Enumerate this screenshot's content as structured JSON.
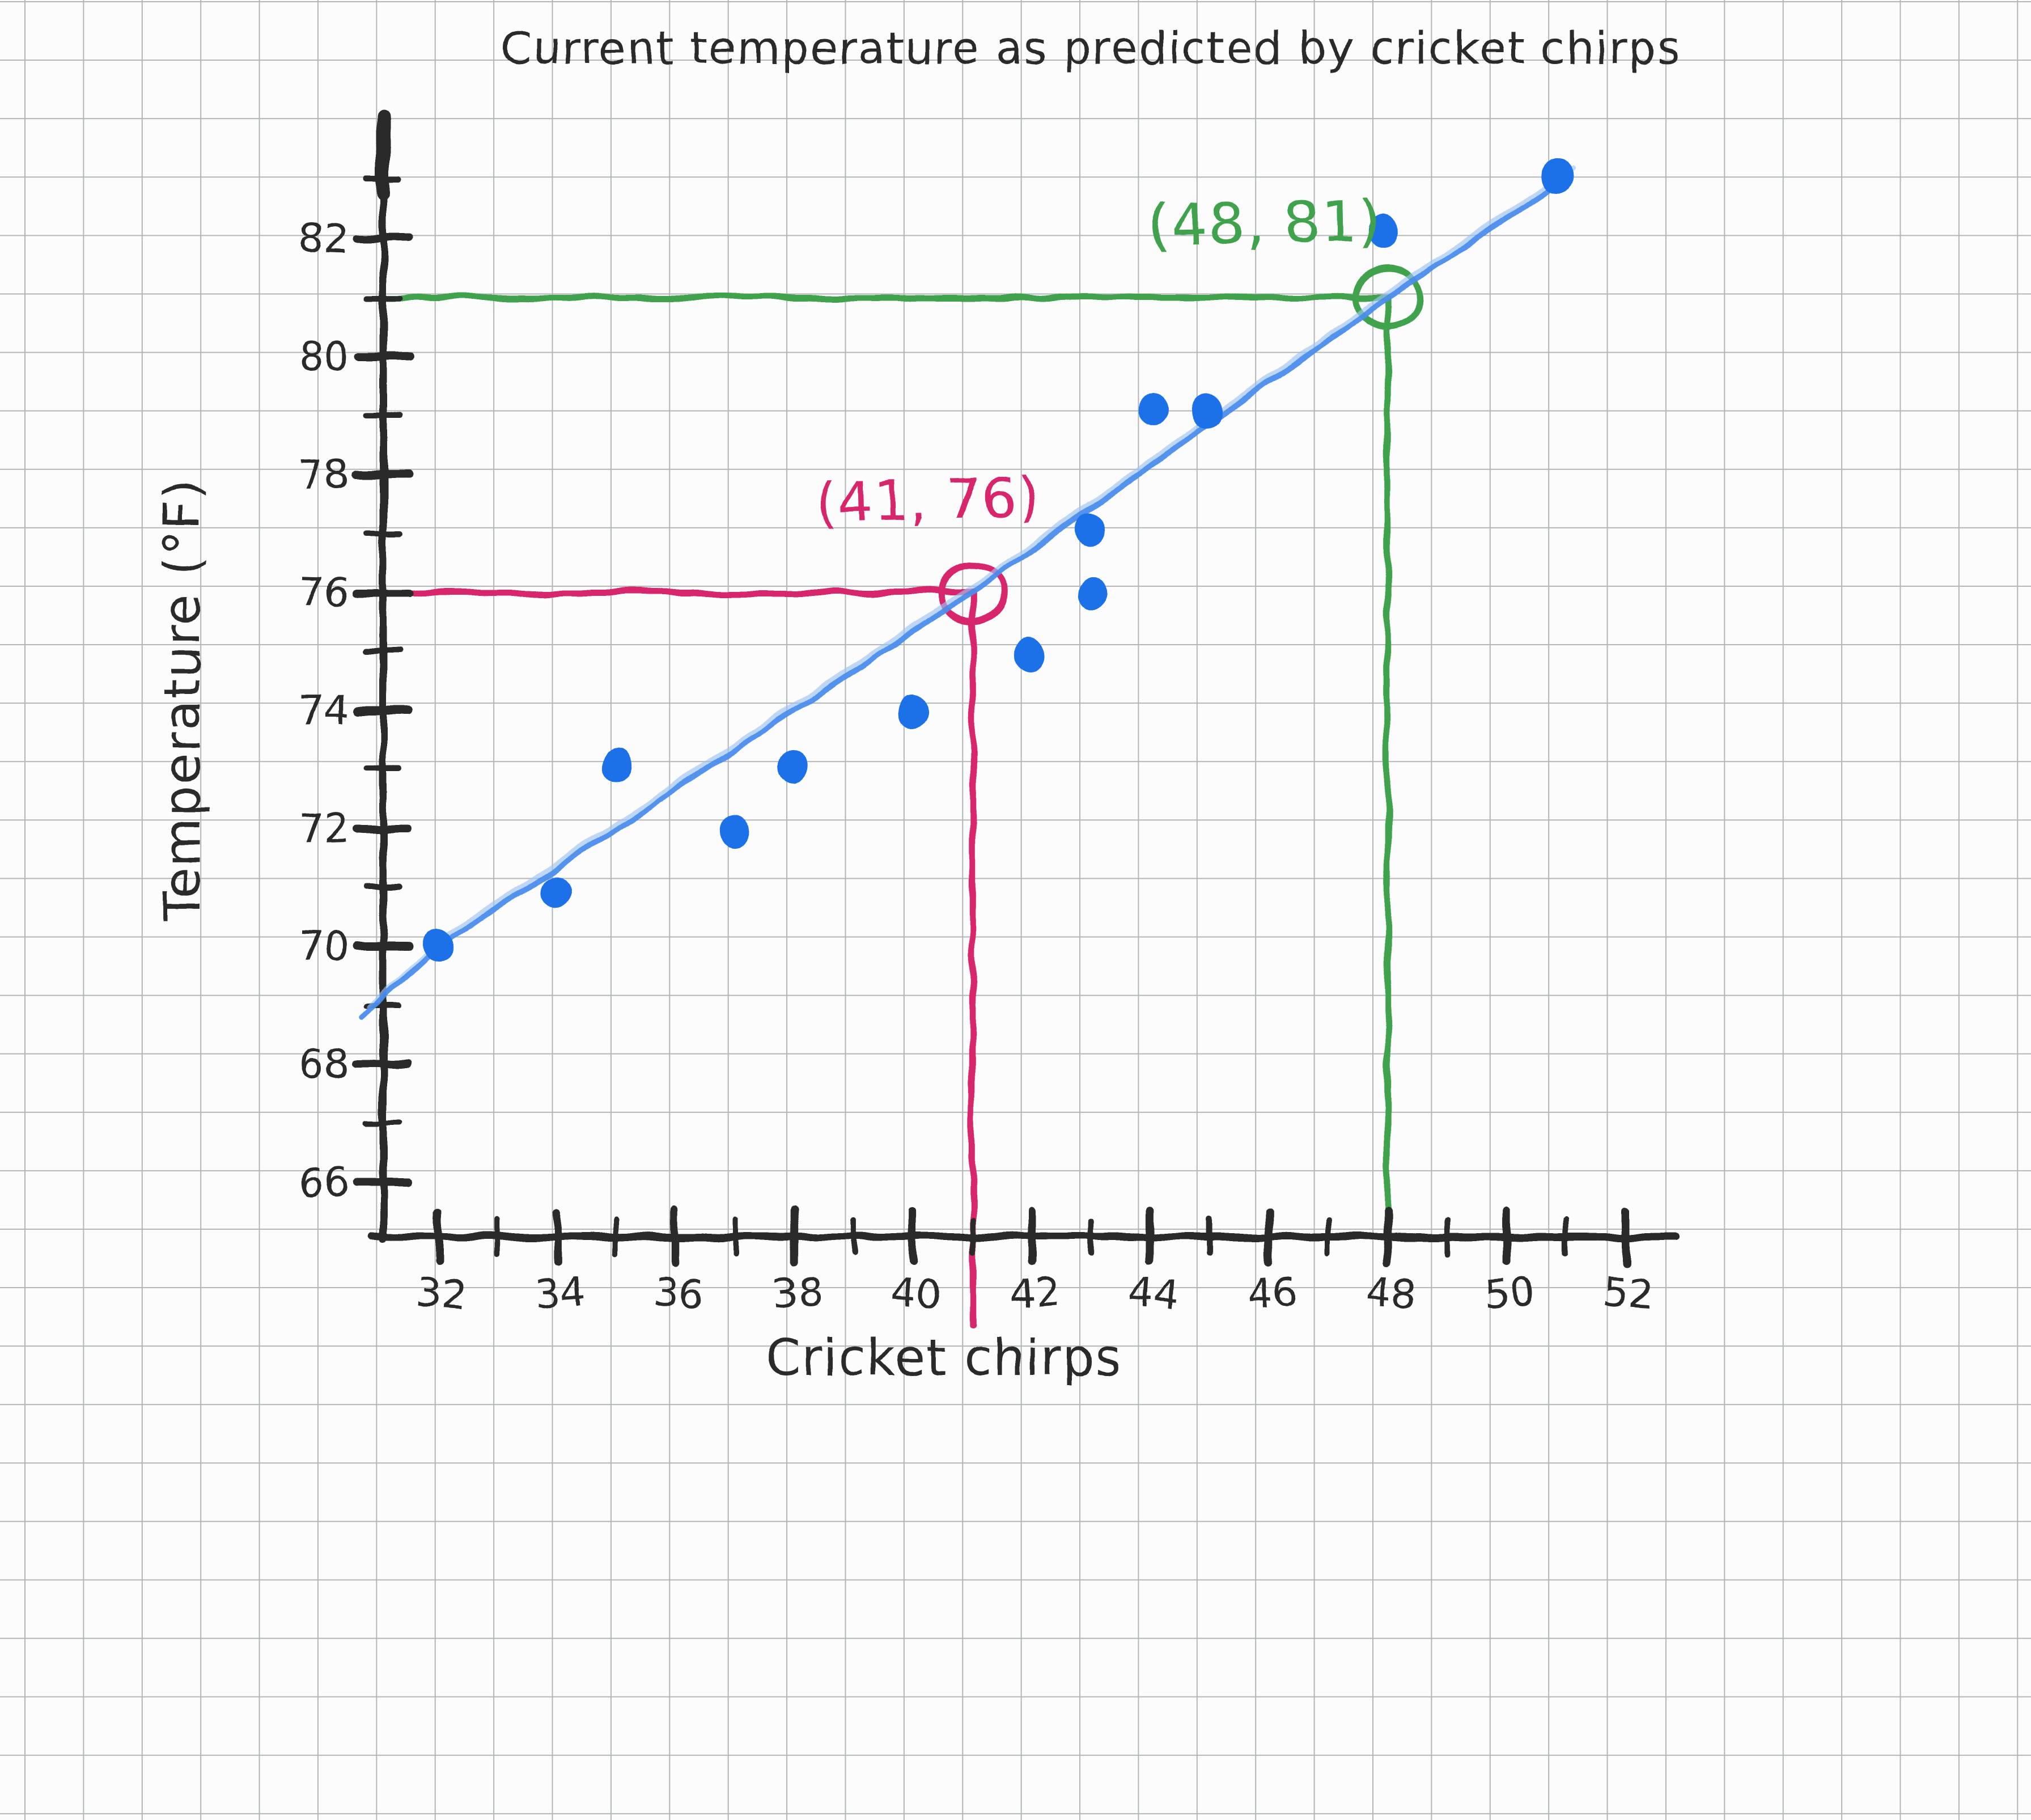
{
  "title": "Current temperature as predicted by cricket chirps",
  "chart_data": {
    "type": "scatter",
    "title": "Current temperature as predicted by cricket chirps",
    "xlabel": "Cricket chirps",
    "ylabel": "Temperature (°F)",
    "x_tick_labels": [
      32,
      34,
      36,
      38,
      40,
      42,
      44,
      46,
      48,
      50,
      52
    ],
    "y_tick_labels": [
      66,
      68,
      70,
      72,
      74,
      76,
      78,
      80,
      82
    ],
    "x_minor_tick_step": 1,
    "y_minor_tick_step": 1,
    "x_tick_range": [
      32,
      52
    ],
    "y_tick_range": [
      66,
      83
    ],
    "xlim": [
      31,
      52.7
    ],
    "ylim": [
      64.9,
      84.1
    ],
    "grid": "graph-paper",
    "points": [
      [
        32,
        70
      ],
      [
        34,
        71
      ],
      [
        35,
        73
      ],
      [
        37,
        72
      ],
      [
        38,
        73
      ],
      [
        40,
        74
      ],
      [
        42,
        75
      ],
      [
        43,
        76
      ],
      [
        43,
        77
      ],
      [
        44,
        79
      ],
      [
        45,
        79
      ],
      [
        48,
        82
      ],
      [
        51,
        83
      ]
    ],
    "point_color": "#1a6fe8",
    "trendline": {
      "color": "#4b8dec",
      "echo_color": "#9cc3f5",
      "through": [
        [
          31,
          69
        ],
        [
          32,
          70
        ],
        [
          41,
          76
        ],
        [
          48,
          81
        ],
        [
          51,
          83
        ]
      ]
    },
    "annotations": [
      {
        "label": "(41, 76)",
        "x": 41,
        "y": 76,
        "color": "#d8256d"
      },
      {
        "label": "(48, 81)",
        "x": 48,
        "y": 81,
        "color": "#3fa24d"
      }
    ],
    "ink_color": "#2b2b2b",
    "paper_color": "#fcfcfc",
    "grid_color": "#b2b6b8"
  }
}
